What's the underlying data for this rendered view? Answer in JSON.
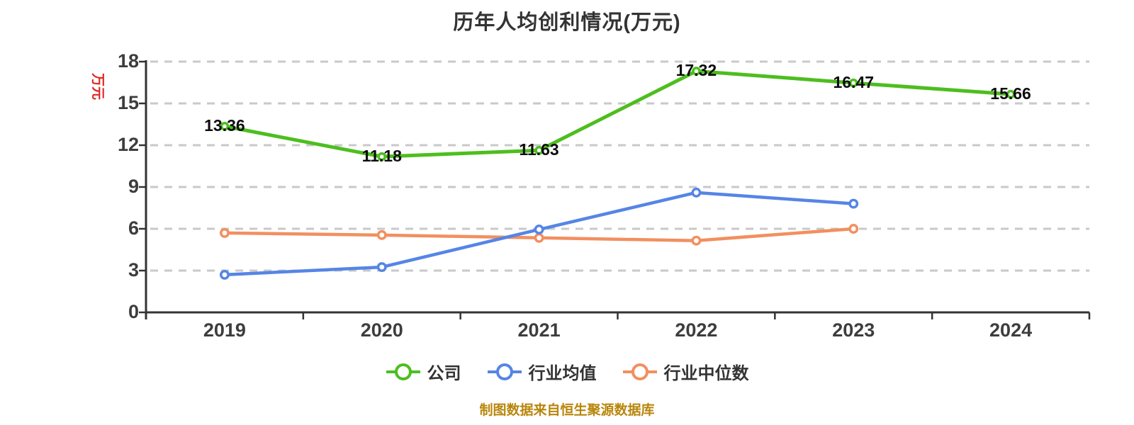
{
  "title": "历年人均创利情况(万元)",
  "y_axis_name": "万元",
  "caption": "制图数据来自恒生聚源数据库",
  "legend": [
    {
      "id": "company",
      "label": "公司",
      "color": "#4dbe1e"
    },
    {
      "id": "industry-avg",
      "label": "行业均值",
      "color": "#5585e5"
    },
    {
      "id": "industry-median",
      "label": "行业中位数",
      "color": "#f28f5f"
    }
  ],
  "colors": {
    "company_green": "#4dbe1e",
    "industry_avg_blue": "#5585e5",
    "industry_median_orange": "#f28f5f",
    "axis": "#333333",
    "gridline": "#c9c9c9",
    "tick_label": "#3d3d3d",
    "data_label": "#0d0d0d",
    "y_axis_name_red": "#e02422",
    "caption_gold": "#b8860b",
    "marker_fill": "#ffffff"
  },
  "chart_data": {
    "type": "line",
    "categories": [
      "2019",
      "2020",
      "2021",
      "2022",
      "2023",
      "2024"
    ],
    "series": [
      {
        "id": "company",
        "name": "公司",
        "color": "#4dbe1e",
        "values": [
          13.36,
          11.18,
          11.63,
          17.32,
          16.47,
          15.66
        ],
        "labels": [
          "13.36",
          "11.18",
          "11.63",
          "17.32",
          "16.47",
          "15.66"
        ]
      },
      {
        "id": "industry-avg",
        "name": "行业均值",
        "color": "#5585e5",
        "values": [
          2.7,
          3.25,
          5.95,
          8.6,
          7.8,
          null
        ]
      },
      {
        "id": "industry-median",
        "name": "行业中位数",
        "color": "#f28f5f",
        "values": [
          5.7,
          5.55,
          5.35,
          5.15,
          6.0,
          null
        ]
      }
    ],
    "title": "历年人均创利情况(万元)",
    "xlabel": "",
    "ylabel": "万元",
    "ylim": [
      0,
      18
    ],
    "y_ticks": [
      0,
      3,
      6,
      9,
      12,
      15,
      18
    ],
    "grid": "horizontal-dashed",
    "legend_position": "bottom-center",
    "marker_style": "circle-white-fill-colored-ring"
  }
}
